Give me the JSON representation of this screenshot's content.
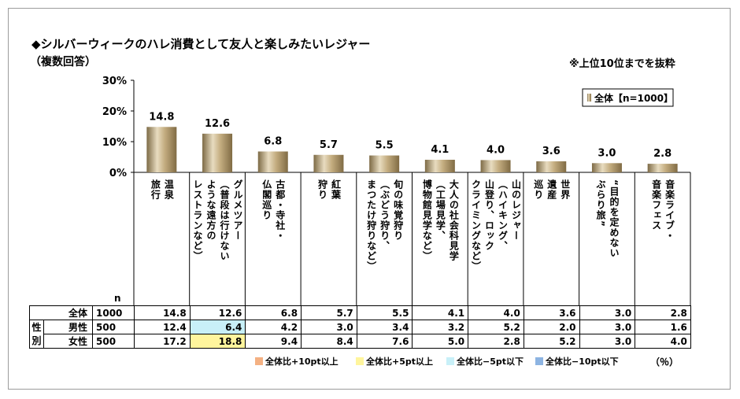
{
  "title": "◆シルバーウィークのハレ消費として友人と楽しみたいレジャー",
  "subtitle": "（複数回答）",
  "note": "※上位10位までを抜粋",
  "n_label": "n",
  "colors": {
    "bar": "#a8946a",
    "highPlus10": "#f4b183",
    "highPlus5": "#fff59d",
    "lowMinus5": "#c8f0f8",
    "lowMinus10": "#8db4e2"
  },
  "chart_data": {
    "type": "bar",
    "title": "◆シルバーウィークのハレ消費として友人と楽しみたいレジャー",
    "ylabel": "%",
    "ylim": [
      0,
      30
    ],
    "yticks": [
      "0%",
      "10%",
      "20%",
      "30%"
    ],
    "legend": "全体【n=1000】",
    "categories": [
      "温泉旅行",
      "グルメツアー（普段は行けないような遠方のレストランなど）",
      "古都・寺社・仏閣巡り",
      "紅葉狩り",
      "旬の味覚狩り（ぶどう狩り、まつたけ狩りなど）",
      "大人の社会科見学（工場見学、博物館見学など）",
      "山のレジャー（ハイキング、山登り、ロッククライミングなど）",
      "世界遺産巡り",
      "“目的を定めないぶらり旅”",
      "音楽ライブ・音楽フェス"
    ],
    "category_lines": [
      [
        "温泉",
        "旅行"
      ],
      [
        "グルメツアー",
        "（普段は行けない",
        "ような遠方の",
        "レストランなど）"
      ],
      [
        "古都・寺社・",
        "仏閣巡り"
      ],
      [
        "紅葉",
        "狩り"
      ],
      [
        "旬の味覚狩り",
        "（ぶどう狩り、",
        "まつたけ狩りなど）"
      ],
      [
        "大人の社会科見学",
        "（工場見学、",
        "博物館見学など）"
      ],
      [
        "山のレジャー",
        "（ハイキング、",
        "山登り、ロック",
        "クライミングなど）"
      ],
      [
        "世界",
        "遺産",
        "巡り"
      ],
      [
        "“目的を定めない",
        "ぶらり旅”"
      ],
      [
        "音楽ライブ・",
        "音楽フェス"
      ]
    ],
    "values": [
      14.8,
      12.6,
      6.8,
      5.7,
      5.5,
      4.1,
      4.0,
      3.6,
      3.0,
      2.8
    ],
    "value_labels": [
      "14.8",
      "12.6",
      "6.8",
      "5.7",
      "5.5",
      "4.1",
      "4.0",
      "3.6",
      "3.0",
      "2.8"
    ]
  },
  "table": {
    "group_label": "性別",
    "rows": [
      {
        "label": "全体",
        "n": "1000",
        "values": [
          "14.8",
          "12.6",
          "6.8",
          "5.7",
          "5.5",
          "4.1",
          "4.0",
          "3.6",
          "3.0",
          "2.8"
        ],
        "marks": [
          "",
          "",
          "",
          "",
          "",
          "",
          "",
          "",
          "",
          ""
        ]
      },
      {
        "label": "男性",
        "n": "500",
        "values": [
          "12.4",
          "6.4",
          "4.2",
          "3.0",
          "3.4",
          "3.2",
          "5.2",
          "2.0",
          "3.0",
          "1.6"
        ],
        "marks": [
          "",
          "lowMinus5",
          "",
          "",
          "",
          "",
          "",
          "",
          "",
          ""
        ]
      },
      {
        "label": "女性",
        "n": "500",
        "values": [
          "17.2",
          "18.8",
          "9.4",
          "8.4",
          "7.6",
          "5.0",
          "2.8",
          "5.2",
          "3.0",
          "4.0"
        ],
        "marks": [
          "",
          "highPlus5",
          "",
          "",
          "",
          "",
          "",
          "",
          "",
          ""
        ]
      }
    ]
  },
  "legend_items": [
    {
      "key": "highPlus10",
      "label": "全体比+10pt以上"
    },
    {
      "key": "highPlus5",
      "label": "全体比+5pt以上"
    },
    {
      "key": "lowMinus5",
      "label": "全体比−5pt以下"
    },
    {
      "key": "lowMinus10",
      "label": "全体比−10pt以下"
    }
  ],
  "unit_label": "（％）"
}
